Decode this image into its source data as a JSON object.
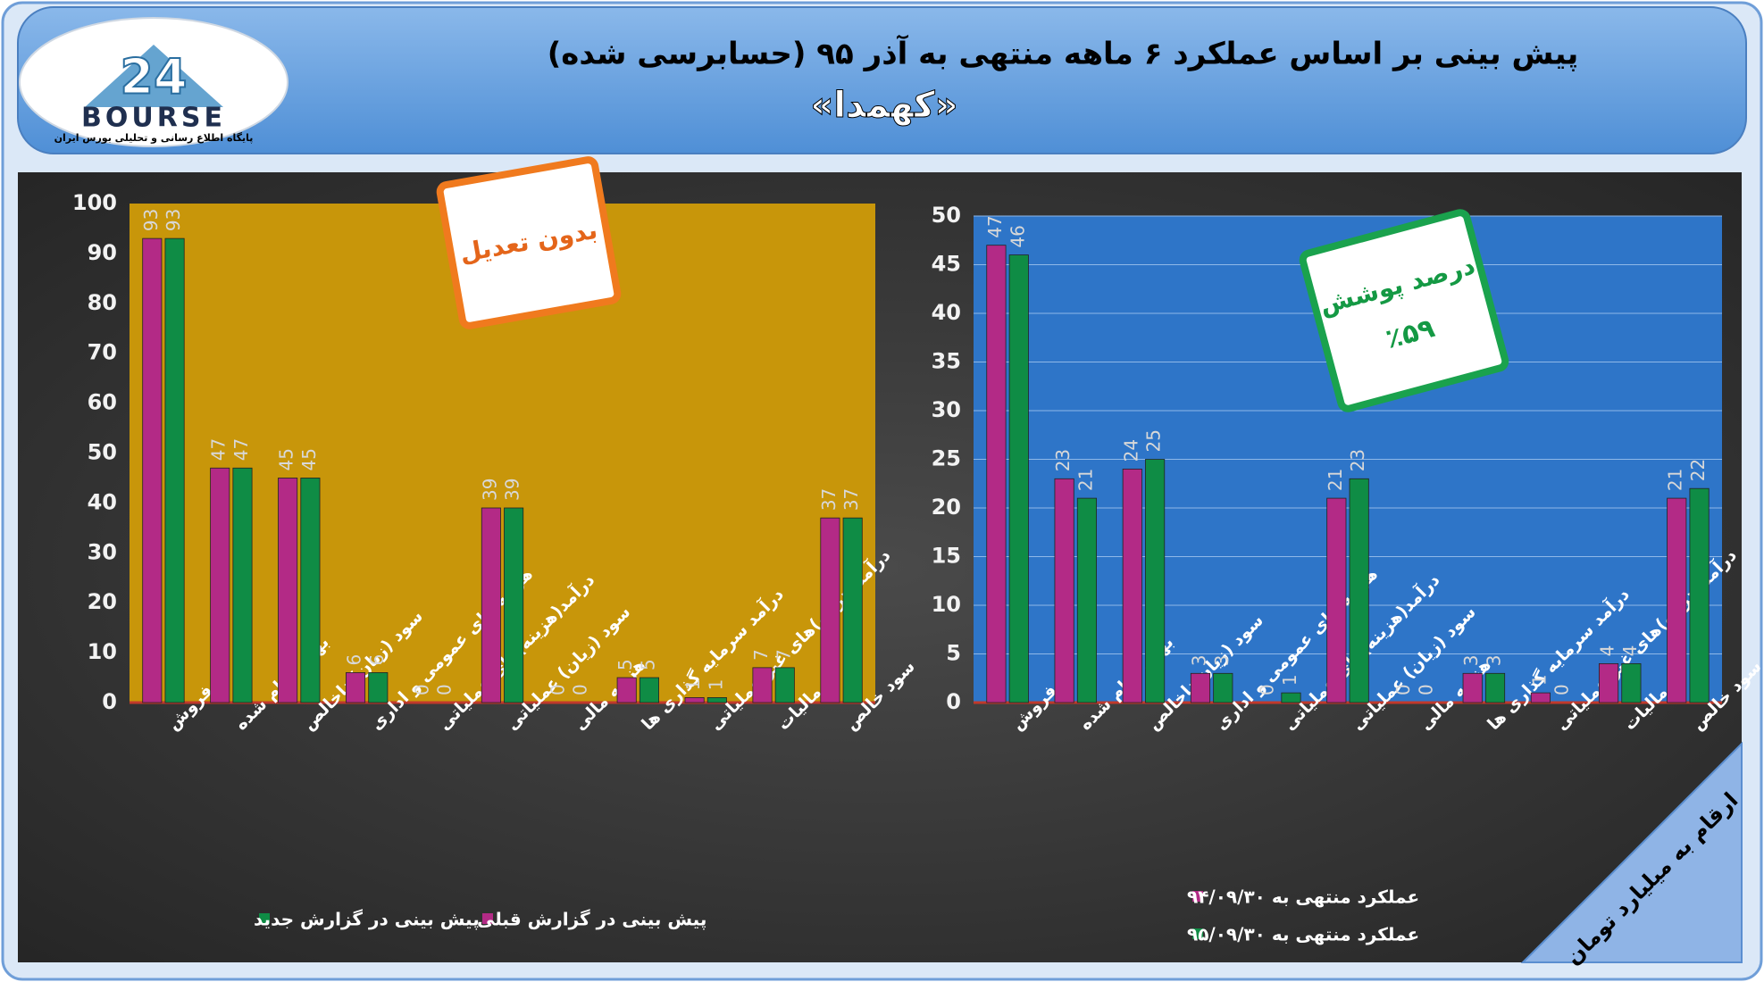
{
  "header": {
    "title": "پیش بینی بر اساس عملکرد ۶ ماهه منتهی به آذر ۹۵ (حسابرسی شده)",
    "subtitle": "«کهمدا»"
  },
  "logo": {
    "number": "24",
    "name": "BOURSE",
    "tagline": "پایگاه اطلاع رسانی و تحلیلی بورس ایران"
  },
  "callouts": {
    "left": "بدون تعدیل",
    "right_title": "درصد پوشش",
    "right_value": "٪۵۹"
  },
  "note": "ارقام به میلیارد تومان",
  "chart_data": [
    {
      "type": "bar",
      "background": "#c8960a",
      "legend": "bottom",
      "categories": [
        "فروش",
        "بهای تمام شده",
        "سود (زیان) ناخالص",
        "هزینه های عمومی و اداری",
        "درآمد(هزینه)های عملیاتی",
        "سود (زیان) عملیاتی",
        "هزینه مالی",
        "درآمد سرمایه گذاری ها",
        "درآمد(هزینه)های غیر عملیاتی",
        "مالیات",
        "سود خالص"
      ],
      "series": [
        {
          "name": "پیش بینی در گزارش قبلی",
          "color": "#b32a86",
          "values": [
            93,
            47,
            45,
            6,
            0,
            39,
            0,
            5,
            1,
            7,
            37
          ]
        },
        {
          "name": "پیش بینی در گزارش جدید",
          "color": "#0f8c45",
          "values": [
            93,
            47,
            45,
            6,
            0,
            39,
            0,
            5,
            1,
            7,
            37
          ]
        }
      ],
      "ylim": [
        0,
        100
      ],
      "yticks": [
        0,
        10,
        20,
        30,
        40,
        50,
        60,
        70,
        80,
        90,
        100
      ],
      "grid": false
    },
    {
      "type": "bar",
      "background": "#2e75c8",
      "legend": "bottom-left",
      "categories": [
        "فروش",
        "بهای تمام شده",
        "سود (زیان)ناخالص",
        "هزینه های عمومی و اداری",
        "درآمد(هزینه)های عملیاتی",
        "سود (زیان) عملیاتی",
        "هزینه مالی",
        "درآمد سرمایه گذاری ها",
        "درآمد(هزینه)های غیر عملیاتی",
        "مالیات",
        "سود خالص"
      ],
      "series": [
        {
          "name": "عملکرد منتهی به ۹۴/۰۹/۳۰",
          "color": "#b32a86",
          "values": [
            47,
            23,
            24,
            3,
            0,
            21,
            0,
            3,
            1,
            4,
            21
          ]
        },
        {
          "name": "عملکرد منتهی به ۹۵/۰۹/۳۰",
          "color": "#0f8c45",
          "values": [
            46,
            21,
            25,
            3,
            1,
            23,
            0,
            3,
            0,
            4,
            22
          ]
        }
      ],
      "ylim": [
        0,
        50
      ],
      "yticks": [
        0,
        5,
        10,
        15,
        20,
        25,
        30,
        35,
        40,
        45,
        50
      ],
      "grid": true
    }
  ]
}
